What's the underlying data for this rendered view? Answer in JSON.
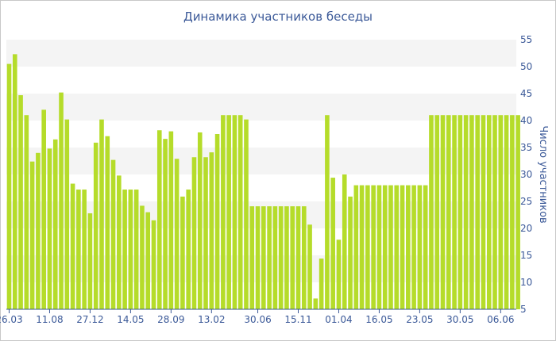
{
  "chart_data": {
    "type": "bar",
    "title": "Динамика участников беседы",
    "ylabel": "Число участников",
    "xlabel": "",
    "ylim": [
      5,
      55
    ],
    "yticks": [
      5,
      10,
      15,
      20,
      25,
      30,
      35,
      40,
      45,
      50,
      55
    ],
    "y_axis_side": "right",
    "bar_color": "#b5dc2a",
    "x_tick_labels": [
      {
        "index": 0,
        "label": "26.03"
      },
      {
        "index": 7,
        "label": "11.08"
      },
      {
        "index": 14,
        "label": "27.12"
      },
      {
        "index": 21,
        "label": "14.05"
      },
      {
        "index": 28,
        "label": "28.09"
      },
      {
        "index": 35,
        "label": "13.02"
      },
      {
        "index": 43,
        "label": "30.06"
      },
      {
        "index": 50,
        "label": "15.11"
      },
      {
        "index": 57,
        "label": "01.04"
      },
      {
        "index": 64,
        "label": "16.05"
      },
      {
        "index": 71,
        "label": "23.05"
      },
      {
        "index": 78,
        "label": "30.05"
      },
      {
        "index": 85,
        "label": "06.06"
      }
    ],
    "values": [
      50.5,
      52.3,
      44.7,
      41,
      32.4,
      34,
      42,
      34.8,
      36.5,
      45.2,
      40.2,
      28.3,
      27.2,
      27.2,
      22.8,
      35.9,
      40.2,
      37.1,
      32.7,
      29.8,
      27.2,
      27.2,
      27.2,
      24.2,
      23,
      21.5,
      38.2,
      36.6,
      38,
      32.9,
      25.9,
      27.2,
      33.2,
      37.8,
      33.2,
      34.1,
      37.5,
      41,
      41,
      41,
      41,
      40.2,
      24.1,
      24.1,
      24.1,
      24.1,
      24.1,
      24.1,
      24.1,
      24.1,
      24.1,
      24.1,
      20.7,
      7,
      14.4,
      41,
      29.4,
      17.9,
      30,
      25.9,
      28,
      28,
      28,
      28,
      28,
      28,
      28,
      28,
      28,
      28,
      28,
      28,
      28,
      41,
      41,
      41,
      41,
      41,
      41,
      41,
      41,
      41,
      41,
      41,
      41,
      41,
      41,
      41,
      41
    ]
  }
}
